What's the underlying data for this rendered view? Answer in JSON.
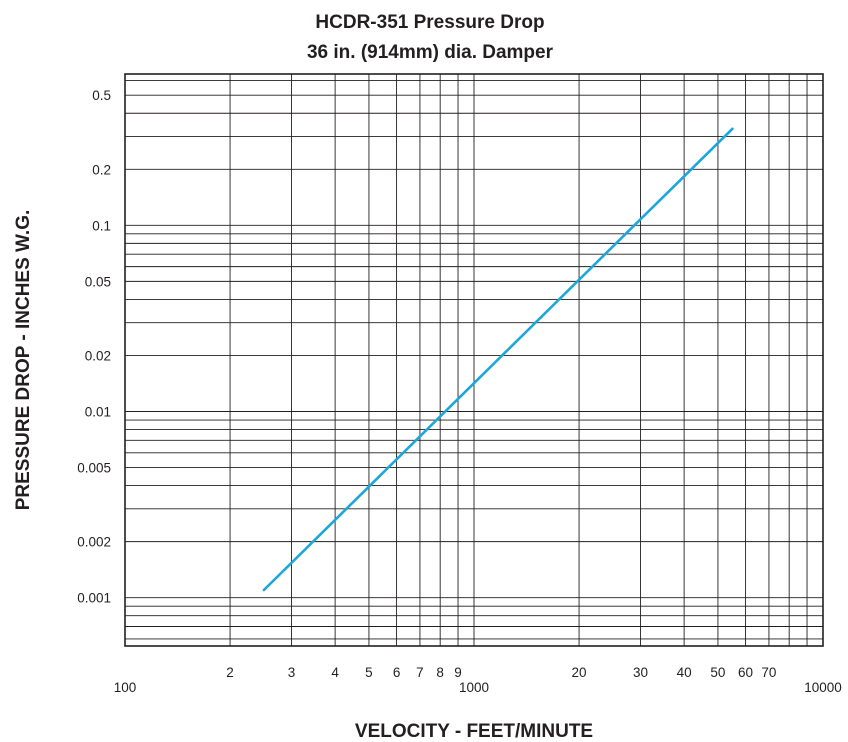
{
  "chart_data": {
    "type": "line",
    "title": [
      "HCDR-351 Pressure Drop",
      "36 in. (914mm) dia. Damper"
    ],
    "xlabel": "VELOCITY - FEET/MINUTE",
    "ylabel": "PRESSURE DROP - INCHES W.G.",
    "x_scale": "log",
    "y_scale": "log",
    "xlim": [
      100,
      10000
    ],
    "ylim": [
      0.00055,
      0.65
    ],
    "grid": true,
    "line_color": "#1ba6dc",
    "x_ticks": [
      {
        "value": 100,
        "label": "100"
      },
      {
        "value": 200,
        "label": "2"
      },
      {
        "value": 300,
        "label": "3"
      },
      {
        "value": 400,
        "label": "4"
      },
      {
        "value": 500,
        "label": "5"
      },
      {
        "value": 600,
        "label": "6"
      },
      {
        "value": 700,
        "label": "7"
      },
      {
        "value": 800,
        "label": "8"
      },
      {
        "value": 900,
        "label": "9"
      },
      {
        "value": 1000,
        "label": "1000"
      },
      {
        "value": 2000,
        "label": "20"
      },
      {
        "value": 3000,
        "label": "30"
      },
      {
        "value": 4000,
        "label": "40"
      },
      {
        "value": 5000,
        "label": "50"
      },
      {
        "value": 6000,
        "label": "60"
      },
      {
        "value": 7000,
        "label": "70"
      },
      {
        "value": 10000,
        "label": "10000"
      }
    ],
    "y_ticks": [
      {
        "value": 0.001,
        "label": "0.001"
      },
      {
        "value": 0.002,
        "label": "0.002"
      },
      {
        "value": 0.005,
        "label": "0.005"
      },
      {
        "value": 0.01,
        "label": "0.01"
      },
      {
        "value": 0.02,
        "label": "0.02"
      },
      {
        "value": 0.05,
        "label": "0.05"
      },
      {
        "value": 0.1,
        "label": "0.1"
      },
      {
        "value": 0.2,
        "label": "0.2"
      },
      {
        "value": 0.5,
        "label": "0.5"
      }
    ],
    "series": [
      {
        "x": [
          250,
          5500
        ],
        "y": [
          0.0011,
          0.33
        ]
      }
    ]
  }
}
